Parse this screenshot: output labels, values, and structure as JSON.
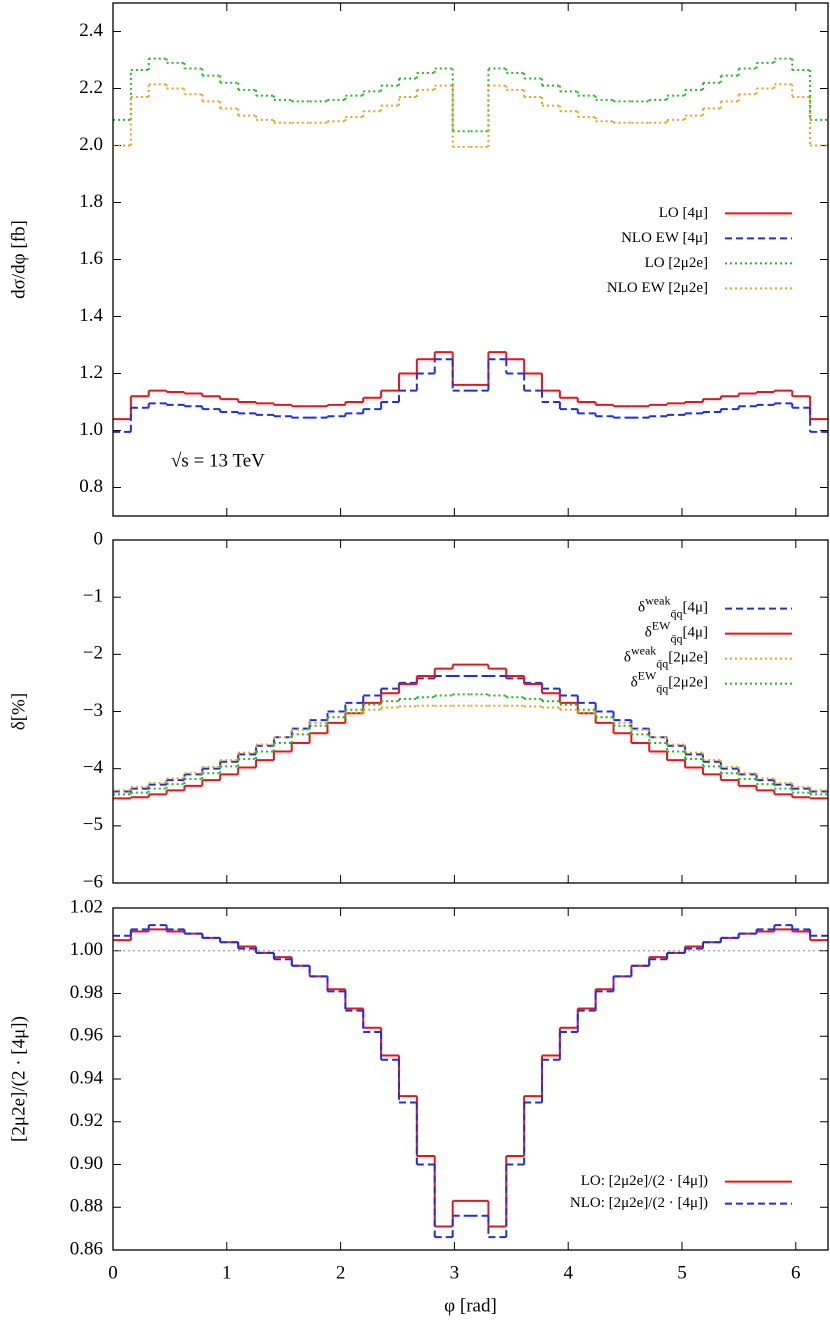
{
  "chart_data": [
    {
      "type": "histogram",
      "ylabel": "dσ/dφ [fb]",
      "annotation": "√s = 13 TeV",
      "legend": "center right",
      "xlim": [
        0,
        6.283
      ],
      "ylim": [
        0.7,
        2.5
      ],
      "yticks": [
        0.8,
        {
          "value": 1,
          "label": "1.0"
        },
        1.2,
        1.4,
        1.6,
        1.8,
        {
          "value": 2,
          "label": "2.0"
        },
        2.2,
        2.4
      ],
      "bins": [
        0,
        0.157,
        0.314,
        0.471,
        0.628,
        0.785,
        0.942,
        1.1,
        1.257,
        1.414,
        1.571,
        1.728,
        1.885,
        2.042,
        2.199,
        2.356,
        2.513,
        2.67,
        2.827,
        2.985,
        3.142,
        3.299,
        3.456,
        3.613,
        3.77,
        3.927,
        4.084,
        4.241,
        4.398,
        4.555,
        4.712,
        4.869,
        5.027,
        5.184,
        5.341,
        5.498,
        5.655,
        5.812,
        5.969,
        6.126,
        6.283
      ],
      "series": [
        {
          "name": "LO  [4μ]",
          "color": "#e8141c",
          "dash": "solid",
          "values": [
            1.04,
            1.12,
            1.14,
            1.135,
            1.13,
            1.12,
            1.11,
            1.1,
            1.095,
            1.09,
            1.085,
            1.085,
            1.09,
            1.1,
            1.115,
            1.14,
            1.2,
            1.25,
            1.275,
            1.16,
            1.16,
            1.275,
            1.25,
            1.2,
            1.14,
            1.115,
            1.1,
            1.09,
            1.085,
            1.085,
            1.09,
            1.095,
            1.1,
            1.11,
            1.12,
            1.13,
            1.135,
            1.14,
            1.12,
            1.04
          ]
        },
        {
          "name": "NLO EW  [4μ]",
          "color": "#1f2fe0",
          "dash": "dashed",
          "values": [
            0.995,
            1.08,
            1.095,
            1.09,
            1.085,
            1.075,
            1.065,
            1.06,
            1.055,
            1.05,
            1.045,
            1.045,
            1.05,
            1.06,
            1.075,
            1.1,
            1.14,
            1.2,
            1.25,
            1.14,
            1.14,
            1.25,
            1.2,
            1.14,
            1.1,
            1.075,
            1.06,
            1.05,
            1.045,
            1.045,
            1.05,
            1.055,
            1.06,
            1.065,
            1.075,
            1.085,
            1.09,
            1.095,
            1.08,
            0.995
          ]
        },
        {
          "name": "LO  [2μ2e]",
          "color": "#22bb22",
          "dash": "dotted",
          "values": [
            2.09,
            2.265,
            2.305,
            2.29,
            2.27,
            2.245,
            2.22,
            2.195,
            2.175,
            2.16,
            2.155,
            2.155,
            2.16,
            2.175,
            2.19,
            2.21,
            2.235,
            2.255,
            2.27,
            2.05,
            2.05,
            2.27,
            2.255,
            2.235,
            2.21,
            2.19,
            2.175,
            2.16,
            2.155,
            2.155,
            2.16,
            2.175,
            2.195,
            2.22,
            2.245,
            2.27,
            2.29,
            2.305,
            2.265,
            2.09
          ]
        },
        {
          "name": "NLO EW  [2μ2e]",
          "color": "#f0a020",
          "dash": "dotted",
          "values": [
            2,
            2.17,
            2.215,
            2.2,
            2.18,
            2.155,
            2.13,
            2.105,
            2.09,
            2.08,
            2.08,
            2.08,
            2.085,
            2.1,
            2.12,
            2.14,
            2.17,
            2.195,
            2.21,
            1.995,
            1.995,
            2.21,
            2.195,
            2.17,
            2.14,
            2.12,
            2.1,
            2.085,
            2.08,
            2.08,
            2.08,
            2.09,
            2.105,
            2.13,
            2.155,
            2.18,
            2.2,
            2.215,
            2.17,
            2
          ]
        }
      ]
    },
    {
      "type": "histogram",
      "ylabel": "δ[%]",
      "legend": "upper right",
      "xlim": [
        0,
        6.283
      ],
      "ylim": [
        -6,
        0
      ],
      "yticks": [
        {
          "value": -6,
          "label": "−6"
        },
        {
          "value": -5,
          "label": "−5"
        },
        {
          "value": -4,
          "label": "−4"
        },
        {
          "value": -3,
          "label": "−3"
        },
        {
          "value": -2,
          "label": "−2"
        },
        {
          "value": -1,
          "label": "−1"
        },
        0
      ],
      "bins": [
        0,
        0.157,
        0.314,
        0.471,
        0.628,
        0.785,
        0.942,
        1.1,
        1.257,
        1.414,
        1.571,
        1.728,
        1.885,
        2.042,
        2.199,
        2.356,
        2.513,
        2.67,
        2.827,
        2.985,
        3.142,
        3.299,
        3.456,
        3.613,
        3.77,
        3.927,
        4.084,
        4.241,
        4.398,
        4.555,
        4.712,
        4.869,
        5.027,
        5.184,
        5.341,
        5.498,
        5.655,
        5.812,
        5.969,
        6.126,
        6.283
      ],
      "series": [
        {
          "name": "δ^{weak}_{q̄q}[4μ]",
          "color": "#1f2fe0",
          "dash": "dashed",
          "values": [
            -4.4,
            -4.35,
            -4.28,
            -4.2,
            -4.1,
            -4,
            -3.88,
            -3.75,
            -3.6,
            -3.45,
            -3.3,
            -3.15,
            -3,
            -2.85,
            -2.72,
            -2.6,
            -2.5,
            -2.42,
            -2.38,
            -2.38,
            -2.38,
            -2.38,
            -2.42,
            -2.5,
            -2.6,
            -2.72,
            -2.85,
            -3,
            -3.15,
            -3.3,
            -3.45,
            -3.6,
            -3.75,
            -3.88,
            -4,
            -4.1,
            -4.2,
            -4.28,
            -4.35,
            -4.4
          ]
        },
        {
          "name": "δ^{EW}_{q̄q}[4μ]",
          "color": "#e8141c",
          "dash": "solid",
          "values": [
            -4.52,
            -4.5,
            -4.45,
            -4.38,
            -4.3,
            -4.2,
            -4.1,
            -3.98,
            -3.85,
            -3.7,
            -3.55,
            -3.38,
            -3.2,
            -3.03,
            -2.85,
            -2.68,
            -2.52,
            -2.38,
            -2.25,
            -2.18,
            -2.18,
            -2.25,
            -2.38,
            -2.52,
            -2.68,
            -2.85,
            -3.03,
            -3.2,
            -3.38,
            -3.55,
            -3.7,
            -3.85,
            -3.98,
            -4.1,
            -4.2,
            -4.3,
            -4.38,
            -4.45,
            -4.5,
            -4.52
          ]
        },
        {
          "name": "δ^{weak}_{q̄q}[2μ2e]",
          "color": "#f0a020",
          "dash": "dotted",
          "values": [
            -4.38,
            -4.32,
            -4.25,
            -4.17,
            -4.08,
            -3.97,
            -3.85,
            -3.72,
            -3.58,
            -3.45,
            -3.32,
            -3.2,
            -3.1,
            -3.02,
            -2.97,
            -2.93,
            -2.91,
            -2.9,
            -2.9,
            -2.9,
            -2.9,
            -2.9,
            -2.9,
            -2.91,
            -2.93,
            -2.97,
            -3.02,
            -3.1,
            -3.2,
            -3.32,
            -3.45,
            -3.58,
            -3.72,
            -3.85,
            -3.97,
            -4.08,
            -4.17,
            -4.25,
            -4.32,
            -4.38
          ]
        },
        {
          "name": "δ^{EW}_{q̄q}[2μ2e]",
          "color": "#22bb22",
          "dash": "dotted",
          "values": [
            -4.45,
            -4.42,
            -4.35,
            -4.27,
            -4.18,
            -4.08,
            -3.96,
            -3.83,
            -3.7,
            -3.55,
            -3.4,
            -3.25,
            -3.1,
            -2.97,
            -2.88,
            -2.82,
            -2.78,
            -2.75,
            -2.72,
            -2.7,
            -2.7,
            -2.72,
            -2.75,
            -2.78,
            -2.82,
            -2.88,
            -2.97,
            -3.1,
            -3.25,
            -3.4,
            -3.55,
            -3.7,
            -3.83,
            -3.96,
            -4.08,
            -4.18,
            -4.27,
            -4.35,
            -4.42,
            -4.45
          ]
        }
      ]
    },
    {
      "type": "histogram",
      "ylabel": "[2μ2e]/(2 · [4μ])",
      "xlabel": "φ [rad]",
      "legend": "lower right",
      "reference_line": 1,
      "xlim": [
        0,
        6.283
      ],
      "ylim": [
        0.86,
        1.02
      ],
      "xticks": [
        0,
        1,
        2,
        3,
        4,
        5,
        6
      ],
      "yticks": [
        0.86,
        0.88,
        {
          "value": 0.9,
          "label": "0.90"
        },
        0.92,
        0.94,
        0.96,
        0.98,
        {
          "value": 1,
          "label": "1.00"
        },
        1.02
      ],
      "bins": [
        0,
        0.157,
        0.314,
        0.471,
        0.628,
        0.785,
        0.942,
        1.1,
        1.257,
        1.414,
        1.571,
        1.728,
        1.885,
        2.042,
        2.199,
        2.356,
        2.513,
        2.67,
        2.827,
        2.985,
        3.142,
        3.299,
        3.456,
        3.613,
        3.77,
        3.927,
        4.084,
        4.241,
        4.398,
        4.555,
        4.712,
        4.869,
        5.027,
        5.184,
        5.341,
        5.498,
        5.655,
        5.812,
        5.969,
        6.126,
        6.283
      ],
      "series": [
        {
          "name": "LO: [2μ2e]/(2 · [4μ])",
          "color": "#e8141c",
          "dash": "solid",
          "values": [
            1.005,
            1.009,
            1.01,
            1.009,
            1.008,
            1.006,
            1.004,
            1.002,
            0.999,
            0.997,
            0.993,
            0.988,
            0.982,
            0.973,
            0.964,
            0.951,
            0.932,
            0.904,
            0.871,
            0.883,
            0.883,
            0.871,
            0.904,
            0.932,
            0.951,
            0.964,
            0.973,
            0.982,
            0.988,
            0.993,
            0.997,
            0.999,
            1.002,
            1.004,
            1.006,
            1.008,
            1.009,
            1.01,
            1.009,
            1.005
          ]
        },
        {
          "name": "NLO: [2μ2e]/(2 · [4μ])",
          "color": "#1f2fe0",
          "dash": "dashed",
          "values": [
            1.007,
            1.01,
            1.012,
            1.01,
            1.008,
            1.006,
            1.004,
            1.001,
            0.999,
            0.996,
            0.993,
            0.988,
            0.981,
            0.972,
            0.962,
            0.949,
            0.929,
            0.9,
            0.866,
            0.876,
            0.876,
            0.866,
            0.9,
            0.929,
            0.949,
            0.962,
            0.972,
            0.981,
            0.988,
            0.993,
            0.996,
            0.999,
            1.001,
            1.004,
            1.006,
            1.008,
            1.01,
            1.012,
            1.01,
            1.007
          ]
        }
      ]
    }
  ]
}
